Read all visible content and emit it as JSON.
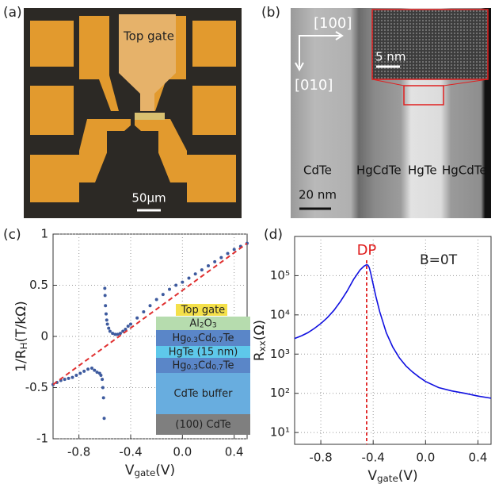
{
  "panel_a": {
    "label": "(a)",
    "top_gate": "Top gate",
    "scale_bar": "50μm"
  },
  "panel_b": {
    "label": "(b)",
    "dir_x": "[100]",
    "dir_y": "[010]",
    "inset_scale": "5 nm",
    "regions": [
      "CdTe",
      "HgCdTe",
      "HgTe",
      "HgCdTe"
    ],
    "scale_bar": "20 nm"
  },
  "chart_data": [
    {
      "type": "scatter",
      "panel_label": "(c)",
      "xlabel_parts": [
        "V",
        "gate",
        "(V)"
      ],
      "ylabel_parts": [
        "1/R",
        "H",
        "(T/kΩ)"
      ],
      "xlim": [
        -1,
        0.5
      ],
      "xticks": [
        -0.8,
        -0.4,
        {
          "value": 0,
          "label": "0.0"
        },
        0.4
      ],
      "ylim": [
        -1,
        1
      ],
      "yticks": [
        -1,
        -0.5,
        0,
        0.5,
        1
      ],
      "grid": true,
      "series": [
        {
          "type": "scatter",
          "color": "#3d5a9e",
          "x": [
            -1,
            -0.97,
            -0.94,
            -0.91,
            -0.88,
            -0.85,
            -0.82,
            -0.79,
            -0.76,
            -0.73,
            -0.7,
            -0.68,
            -0.66,
            -0.64,
            -0.63,
            -0.62,
            -0.615,
            -0.61,
            -0.605,
            -0.6,
            -0.598,
            -0.595,
            -0.59,
            -0.585,
            -0.58,
            -0.57,
            -0.56,
            -0.54,
            -0.52,
            -0.5,
            -0.48,
            -0.46,
            -0.44,
            -0.42,
            -0.4,
            -0.35,
            -0.3,
            -0.25,
            -0.2,
            -0.15,
            -0.1,
            -0.05,
            0,
            0.05,
            0.1,
            0.15,
            0.2,
            0.25,
            0.3,
            0.35,
            0.4,
            0.45,
            0.5
          ],
          "values": [
            -0.47,
            -0.45,
            -0.43,
            -0.42,
            -0.41,
            -0.4,
            -0.38,
            -0.36,
            -0.34,
            -0.32,
            -0.31,
            -0.33,
            -0.35,
            -0.36,
            -0.38,
            -0.42,
            -0.5,
            -0.6,
            -0.8,
            0.47,
            0.4,
            0.3,
            0.22,
            0.16,
            0.12,
            0.08,
            0.05,
            0.03,
            0.02,
            0.02,
            0.03,
            0.05,
            0.07,
            0.1,
            0.12,
            0.18,
            0.24,
            0.3,
            0.36,
            0.41,
            0.46,
            0.5,
            0.53,
            0.57,
            0.61,
            0.65,
            0.69,
            0.73,
            0.77,
            0.81,
            0.85,
            0.88,
            0.91
          ]
        },
        {
          "type": "line",
          "dashed": true,
          "color": "#e03030",
          "x": [
            -1,
            0.5
          ],
          "values": [
            -0.47,
            0.91
          ]
        }
      ],
      "inset": {
        "layers": [
          {
            "parts": [
              "Top gate"
            ],
            "color": "#f4e04a"
          },
          {
            "parts": [
              "Al",
              "2",
              "O",
              "3"
            ],
            "color": "#b6dcae"
          },
          {
            "parts": [
              "Hg",
              "0.3",
              "Cd",
              "0.7",
              "Te"
            ],
            "color": "#5a86c8"
          },
          {
            "parts": [
              "HgTe (15 nm)"
            ],
            "color": "#5ec8ea"
          },
          {
            "parts": [
              "Hg",
              "0.3",
              "Cd",
              "0.7",
              "Te"
            ],
            "color": "#5a86c8"
          },
          {
            "parts": [
              "CdTe buffer"
            ],
            "color": "#68addf"
          },
          {
            "parts": [
              "(100) CdTe"
            ],
            "color": "#7f7f7f"
          }
        ]
      }
    },
    {
      "type": "line",
      "panel_label": "(d)",
      "xlabel_parts": [
        "V",
        "gate",
        "(V)"
      ],
      "ylabel_parts": [
        "R",
        "xx",
        "(Ω)"
      ],
      "xlim": [
        -1,
        0.5
      ],
      "xticks": [
        -0.8,
        -0.4,
        {
          "value": 0,
          "label": "0.0"
        },
        0.4
      ],
      "ylim": [
        5,
        1000000
      ],
      "log_y": true,
      "yticks": [
        {
          "value": 10,
          "label": "10¹"
        },
        {
          "value": 100,
          "label": "10²"
        },
        {
          "value": 1000,
          "label": "10³"
        },
        {
          "value": 10000,
          "label": "10⁴"
        },
        {
          "value": 100000,
          "label": "10⁵"
        }
      ],
      "grid": true,
      "series": [
        {
          "type": "line",
          "color": "#1010e0",
          "x": [
            -1,
            -0.95,
            -0.9,
            -0.85,
            -0.8,
            -0.75,
            -0.7,
            -0.65,
            -0.6,
            -0.55,
            -0.5,
            -0.47,
            -0.45,
            -0.44,
            -0.43,
            -0.42,
            -0.4,
            -0.38,
            -0.35,
            -0.3,
            -0.25,
            -0.2,
            -0.15,
            -0.1,
            -0.05,
            0,
            0.1,
            0.2,
            0.3,
            0.4,
            0.5
          ],
          "values": [
            2500,
            2900,
            3500,
            4500,
            6000,
            8500,
            13000,
            22000,
            40000,
            80000,
            140000,
            175000,
            190000,
            185000,
            160000,
            120000,
            60000,
            30000,
            12000,
            3500,
            1500,
            800,
            500,
            350,
            260,
            200,
            140,
            115,
            100,
            85,
            75
          ]
        }
      ],
      "vline": {
        "x": -0.45,
        "label": "DP",
        "color": "#e02020"
      },
      "annotation": "B=0T"
    }
  ]
}
